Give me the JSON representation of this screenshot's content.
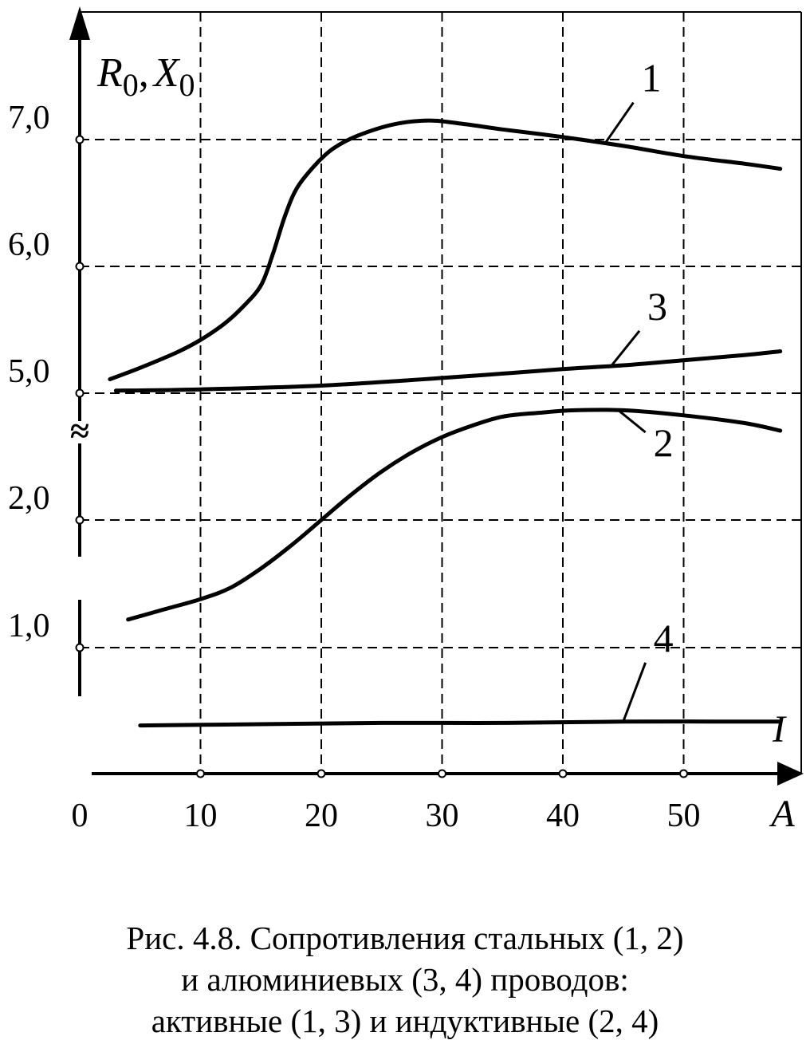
{
  "chart_data": {
    "type": "line",
    "ylabel_r": "R",
    "ylabel_r_sub": "0",
    "ylabel_sep": ",",
    "ylabel_x": "X",
    "ylabel_x_sub": "0",
    "xlabel": "A",
    "current_label": "I",
    "x_ticks": [
      "0",
      "10",
      "20",
      "30",
      "40",
      "50"
    ],
    "x_tick_values": [
      0,
      10,
      20,
      30,
      40,
      50
    ],
    "xlim": [
      0,
      58
    ],
    "grid": true,
    "break_symbol": "≈",
    "y_ticks_upper": [
      {
        "label": "5,0",
        "value": 5.0
      },
      {
        "label": "6,0",
        "value": 6.0
      },
      {
        "label": "7,0",
        "value": 7.0
      }
    ],
    "y_ticks_lower": [
      {
        "label": "1,0",
        "value": 1.0
      },
      {
        "label": "2,0",
        "value": 2.0
      }
    ],
    "series": [
      {
        "name": "1",
        "axis": "upper",
        "points": [
          [
            2.5,
            5.11
          ],
          [
            5,
            5.2
          ],
          [
            8,
            5.32
          ],
          [
            10,
            5.42
          ],
          [
            12,
            5.55
          ],
          [
            13.5,
            5.68
          ],
          [
            15,
            5.85
          ],
          [
            16,
            6.1
          ],
          [
            17,
            6.4
          ],
          [
            18,
            6.62
          ],
          [
            19.5,
            6.8
          ],
          [
            21,
            6.93
          ],
          [
            23,
            7.03
          ],
          [
            26,
            7.12
          ],
          [
            29,
            7.15
          ],
          [
            32,
            7.12
          ],
          [
            35,
            7.08
          ],
          [
            40,
            7.02
          ],
          [
            45,
            6.95
          ],
          [
            50,
            6.87
          ],
          [
            55,
            6.81
          ],
          [
            58,
            6.77
          ]
        ],
        "label_at": [
          46.5,
          7.38
        ]
      },
      {
        "name": "2",
        "axis": "lower",
        "points": [
          [
            4,
            1.22
          ],
          [
            7,
            1.3
          ],
          [
            10,
            1.38
          ],
          [
            12.5,
            1.47
          ],
          [
            15,
            1.62
          ],
          [
            17.5,
            1.8
          ],
          [
            20,
            2.0
          ],
          [
            22.5,
            2.2
          ],
          [
            25,
            2.38
          ],
          [
            27.5,
            2.53
          ],
          [
            30,
            2.65
          ],
          [
            32.5,
            2.74
          ],
          [
            35,
            2.81
          ],
          [
            38,
            2.84
          ],
          [
            41,
            2.86
          ],
          [
            45,
            2.86
          ],
          [
            50,
            2.82
          ],
          [
            55,
            2.76
          ],
          [
            58,
            2.7
          ]
        ],
        "label_at": [
          47.5,
          2.5
        ]
      },
      {
        "name": "3",
        "axis": "upper",
        "points": [
          [
            3,
            5.02
          ],
          [
            10,
            5.03
          ],
          [
            20,
            5.06
          ],
          [
            30,
            5.12
          ],
          [
            40,
            5.19
          ],
          [
            45,
            5.22
          ],
          [
            50,
            5.26
          ],
          [
            55,
            5.3
          ],
          [
            58,
            5.33
          ]
        ],
        "label_at": [
          47.0,
          5.58
        ]
      },
      {
        "name": "4",
        "axis": "lower",
        "points": [
          [
            5,
            0.39
          ],
          [
            15,
            0.4
          ],
          [
            25,
            0.41
          ],
          [
            35,
            0.41
          ],
          [
            45,
            0.42
          ],
          [
            58,
            0.42
          ]
        ],
        "label_at": [
          47.5,
          0.97
        ]
      }
    ]
  },
  "caption": {
    "line1": "Рис. 4.8. Сопротивления стальных (1, 2)",
    "line2": "и алюминиевых (3, 4) проводов:",
    "line3": "активные (1, 3) и индуктивные (2, 4)"
  }
}
